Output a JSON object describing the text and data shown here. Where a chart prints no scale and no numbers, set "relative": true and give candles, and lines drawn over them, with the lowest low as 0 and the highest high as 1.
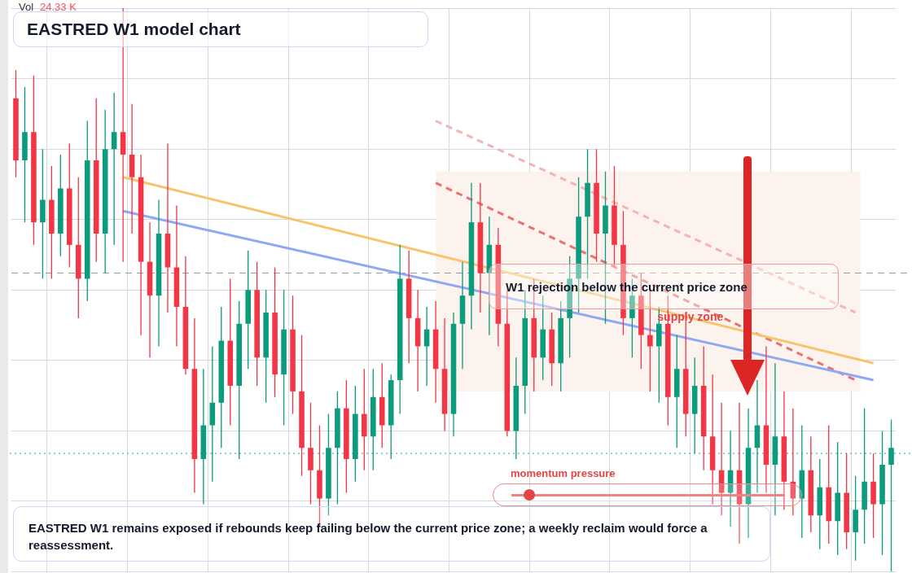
{
  "chart_data": {
    "type": "candlestick",
    "title": "EASTRED W1 model chart",
    "relative": true,
    "grid": true,
    "legend": false,
    "categories": [
      null,
      null,
      null,
      null,
      null,
      null,
      null,
      null,
      null,
      null,
      null,
      null,
      null,
      null,
      null,
      null,
      null,
      null,
      null,
      null,
      null,
      null,
      null,
      null,
      null,
      null,
      null,
      null,
      null,
      null,
      null,
      null,
      null,
      null,
      null,
      null,
      null,
      null,
      null,
      null,
      null,
      null,
      null,
      null,
      null,
      null,
      null,
      null,
      null,
      null,
      null,
      null,
      null,
      null,
      null,
      null,
      null,
      null,
      null,
      null,
      null,
      null,
      null,
      null,
      null,
      null,
      null,
      null,
      null,
      null,
      null,
      null,
      null,
      null,
      null,
      null,
      null,
      null,
      null,
      null,
      null,
      null,
      null,
      null,
      null,
      null,
      null,
      null,
      null,
      null,
      null,
      null,
      null,
      null,
      null,
      null,
      null,
      null,
      null
    ],
    "ohlc": [
      [
        0.84,
        0.89,
        0.7,
        0.73
      ],
      [
        0.73,
        0.86,
        0.62,
        0.78
      ],
      [
        0.78,
        0.88,
        0.58,
        0.62
      ],
      [
        0.62,
        0.75,
        0.52,
        0.66
      ],
      [
        0.66,
        0.72,
        0.52,
        0.6
      ],
      [
        0.6,
        0.74,
        0.56,
        0.68
      ],
      [
        0.68,
        0.76,
        0.54,
        0.58
      ],
      [
        0.58,
        0.7,
        0.45,
        0.52
      ],
      [
        0.52,
        0.8,
        0.48,
        0.73
      ],
      [
        0.73,
        0.84,
        0.55,
        0.6
      ],
      [
        0.6,
        0.82,
        0.53,
        0.75
      ],
      [
        0.75,
        0.85,
        0.58,
        0.78
      ],
      [
        0.78,
        1.0,
        0.55,
        0.74
      ],
      [
        0.74,
        0.83,
        0.6,
        0.7
      ],
      [
        0.7,
        0.74,
        0.42,
        0.55
      ],
      [
        0.55,
        0.62,
        0.38,
        0.49
      ],
      [
        0.49,
        0.66,
        0.4,
        0.6
      ],
      [
        0.6,
        0.76,
        0.46,
        0.54
      ],
      [
        0.54,
        0.65,
        0.4,
        0.47
      ],
      [
        0.47,
        0.56,
        0.35,
        0.36
      ],
      [
        0.36,
        0.45,
        0.14,
        0.2
      ],
      [
        0.2,
        0.36,
        0.12,
        0.26
      ],
      [
        0.26,
        0.4,
        0.16,
        0.3
      ],
      [
        0.3,
        0.47,
        0.22,
        0.41
      ],
      [
        0.41,
        0.52,
        0.26,
        0.33
      ],
      [
        0.33,
        0.48,
        0.2,
        0.44
      ],
      [
        0.44,
        0.57,
        0.36,
        0.5
      ],
      [
        0.5,
        0.55,
        0.33,
        0.38
      ],
      [
        0.38,
        0.5,
        0.3,
        0.46
      ],
      [
        0.46,
        0.54,
        0.31,
        0.35
      ],
      [
        0.35,
        0.5,
        0.26,
        0.43
      ],
      [
        0.43,
        0.49,
        0.28,
        0.32
      ],
      [
        0.32,
        0.42,
        0.17,
        0.22
      ],
      [
        0.22,
        0.3,
        0.12,
        0.18
      ],
      [
        0.18,
        0.26,
        0.08,
        0.13
      ],
      [
        0.13,
        0.28,
        0.1,
        0.22
      ],
      [
        0.22,
        0.32,
        0.12,
        0.29
      ],
      [
        0.29,
        0.34,
        0.14,
        0.2
      ],
      [
        0.2,
        0.33,
        0.16,
        0.28
      ],
      [
        0.28,
        0.36,
        0.18,
        0.24
      ],
      [
        0.24,
        0.36,
        0.18,
        0.31
      ],
      [
        0.31,
        0.37,
        0.22,
        0.26
      ],
      [
        0.26,
        0.35,
        0.2,
        0.34
      ],
      [
        0.34,
        0.58,
        0.28,
        0.52
      ],
      [
        0.52,
        0.57,
        0.37,
        0.45
      ],
      [
        0.45,
        0.5,
        0.32,
        0.4
      ],
      [
        0.4,
        0.47,
        0.33,
        0.43
      ],
      [
        0.43,
        0.48,
        0.3,
        0.36
      ],
      [
        0.36,
        0.45,
        0.25,
        0.28
      ],
      [
        0.28,
        0.46,
        0.24,
        0.44
      ],
      [
        0.44,
        0.55,
        0.36,
        0.49
      ],
      [
        0.49,
        0.69,
        0.43,
        0.62
      ],
      [
        0.62,
        0.69,
        0.46,
        0.53
      ],
      [
        0.53,
        0.63,
        0.42,
        0.58
      ],
      [
        0.58,
        0.61,
        0.4,
        0.44
      ],
      [
        0.44,
        0.5,
        0.24,
        0.25
      ],
      [
        0.25,
        0.38,
        0.2,
        0.33
      ],
      [
        0.33,
        0.5,
        0.28,
        0.45
      ],
      [
        0.45,
        0.52,
        0.32,
        0.38
      ],
      [
        0.38,
        0.49,
        0.34,
        0.43
      ],
      [
        0.43,
        0.46,
        0.33,
        0.37
      ],
      [
        0.37,
        0.48,
        0.32,
        0.45
      ],
      [
        0.45,
        0.56,
        0.38,
        0.52
      ],
      [
        0.52,
        0.7,
        0.46,
        0.63
      ],
      [
        0.63,
        0.75,
        0.52,
        0.69
      ],
      [
        0.69,
        0.75,
        0.55,
        0.6
      ],
      [
        0.6,
        0.71,
        0.44,
        0.65
      ],
      [
        0.65,
        0.72,
        0.54,
        0.58
      ],
      [
        0.58,
        0.64,
        0.42,
        0.45
      ],
      [
        0.45,
        0.52,
        0.38,
        0.49
      ],
      [
        0.49,
        0.53,
        0.36,
        0.42
      ],
      [
        0.42,
        0.5,
        0.32,
        0.4
      ],
      [
        0.4,
        0.47,
        0.3,
        0.44
      ],
      [
        0.44,
        0.49,
        0.26,
        0.31
      ],
      [
        0.31,
        0.42,
        0.22,
        0.36
      ],
      [
        0.36,
        0.46,
        0.24,
        0.28
      ],
      [
        0.28,
        0.38,
        0.21,
        0.33
      ],
      [
        0.33,
        0.4,
        0.18,
        0.24
      ],
      [
        0.24,
        0.35,
        0.12,
        0.18
      ],
      [
        0.18,
        0.3,
        0.1,
        0.14
      ],
      [
        0.14,
        0.25,
        0.08,
        0.18
      ],
      [
        0.18,
        0.3,
        0.05,
        0.12
      ],
      [
        0.12,
        0.29,
        0.06,
        0.22
      ],
      [
        0.22,
        0.34,
        0.14,
        0.26
      ],
      [
        0.26,
        0.4,
        0.14,
        0.19
      ],
      [
        0.19,
        0.37,
        0.1,
        0.24
      ],
      [
        0.24,
        0.32,
        0.11,
        0.16
      ],
      [
        0.16,
        0.29,
        0.1,
        0.13
      ],
      [
        0.13,
        0.26,
        0.06,
        0.18
      ],
      [
        0.18,
        0.24,
        0.07,
        0.1
      ],
      [
        0.1,
        0.2,
        0.04,
        0.15
      ],
      [
        0.15,
        0.26,
        0.05,
        0.09
      ],
      [
        0.09,
        0.23,
        0.03,
        0.14
      ],
      [
        0.14,
        0.21,
        0.04,
        0.07
      ],
      [
        0.07,
        0.17,
        0.02,
        0.11
      ],
      [
        0.11,
        0.29,
        0.05,
        0.16
      ],
      [
        0.16,
        0.21,
        0.06,
        0.12
      ],
      [
        0.12,
        0.25,
        0.03,
        0.19
      ],
      [
        0.19,
        0.27,
        0.0,
        0.22
      ]
    ],
    "series": [
      {
        "type": "line",
        "color": "#f7c46c",
        "line_style": "solid",
        "values": [
          null,
          null,
          null,
          null,
          null,
          null,
          null,
          null,
          null,
          null,
          null,
          null,
          0.7,
          null,
          null,
          null,
          null,
          null,
          null,
          null,
          null,
          null,
          null,
          null,
          null,
          null,
          null,
          null,
          null,
          null,
          null,
          null,
          null,
          null,
          null,
          null,
          null,
          null,
          null,
          null,
          null,
          null,
          null,
          null,
          null,
          null,
          null,
          null,
          null,
          null,
          null,
          null,
          null,
          null,
          null,
          null,
          null,
          null,
          null,
          null,
          null,
          null,
          null,
          null,
          null,
          null,
          null,
          null,
          null,
          null,
          null,
          null,
          null,
          null,
          null,
          null,
          null,
          null,
          null,
          null,
          null,
          null,
          null,
          null,
          null,
          null,
          null,
          null,
          null,
          null,
          null,
          null,
          null,
          null,
          null,
          null,
          0.37,
          null,
          null
        ]
      },
      {
        "type": "line",
        "color": "#8fa8f5",
        "line_style": "solid",
        "values": [
          null,
          null,
          null,
          null,
          null,
          null,
          null,
          null,
          null,
          null,
          null,
          null,
          0.64,
          null,
          null,
          null,
          null,
          null,
          null,
          null,
          null,
          null,
          null,
          null,
          null,
          null,
          null,
          null,
          null,
          null,
          null,
          null,
          null,
          null,
          null,
          null,
          null,
          null,
          null,
          null,
          null,
          null,
          null,
          null,
          null,
          null,
          null,
          null,
          null,
          null,
          null,
          null,
          null,
          null,
          null,
          null,
          null,
          null,
          null,
          null,
          null,
          null,
          null,
          null,
          null,
          null,
          null,
          null,
          null,
          null,
          null,
          null,
          null,
          null,
          null,
          null,
          null,
          null,
          null,
          null,
          null,
          null,
          null,
          null,
          null,
          null,
          null,
          null,
          null,
          null,
          null,
          null,
          null,
          null,
          null,
          null,
          0.34,
          null,
          null
        ]
      },
      {
        "type": "line",
        "color": "#e87272",
        "line_style": "dashed",
        "values": [
          null,
          null,
          null,
          null,
          null,
          null,
          null,
          null,
          null,
          null,
          null,
          null,
          null,
          null,
          null,
          null,
          null,
          null,
          null,
          null,
          null,
          null,
          null,
          null,
          null,
          null,
          null,
          null,
          null,
          null,
          null,
          null,
          null,
          null,
          null,
          null,
          null,
          null,
          null,
          null,
          null,
          null,
          null,
          null,
          null,
          null,
          null,
          0.69,
          null,
          null,
          null,
          null,
          null,
          null,
          null,
          null,
          null,
          null,
          null,
          null,
          null,
          null,
          null,
          null,
          null,
          null,
          null,
          null,
          null,
          null,
          null,
          null,
          null,
          null,
          null,
          null,
          null,
          null,
          null,
          null,
          null,
          null,
          null,
          null,
          null,
          null,
          null,
          null,
          null,
          null,
          null,
          null,
          null,
          null,
          0.34,
          null,
          null,
          null,
          null
        ]
      },
      {
        "type": "line",
        "color": "#f4b4b4",
        "line_style": "dashed",
        "values": [
          null,
          null,
          null,
          null,
          null,
          null,
          null,
          null,
          null,
          null,
          null,
          null,
          null,
          null,
          null,
          null,
          null,
          null,
          null,
          null,
          null,
          null,
          null,
          null,
          null,
          null,
          null,
          null,
          null,
          null,
          null,
          null,
          null,
          null,
          null,
          null,
          null,
          null,
          null,
          null,
          null,
          null,
          null,
          null,
          null,
          null,
          null,
          0.8,
          null,
          null,
          null,
          null,
          null,
          null,
          null,
          null,
          null,
          null,
          null,
          null,
          null,
          null,
          null,
          null,
          null,
          null,
          null,
          null,
          null,
          null,
          null,
          null,
          null,
          null,
          null,
          null,
          null,
          null,
          null,
          null,
          null,
          null,
          null,
          null,
          null,
          null,
          null,
          null,
          null,
          null,
          null,
          null,
          null,
          null,
          0.46,
          null,
          null,
          null,
          null
        ]
      }
    ],
    "ref_lines": [
      {
        "axis": "y",
        "value": 0.53,
        "color": "#999999",
        "line_style": "dashed"
      },
      {
        "axis": "y",
        "value": 0.21,
        "color": "#1aa39a",
        "line_style": "dotted"
      }
    ],
    "bands": [
      {
        "axis": "y",
        "from": 0.32,
        "to": 0.71,
        "label": "supply zone",
        "color": "#fdf3ee"
      }
    ],
    "annotations": [
      "Vol",
      "24.33 K",
      "W1 rejection below the current price zone",
      "momentum pressure",
      "EASTRED W1 remains exposed if rebounds keep failing below the current price zone; a weekly reclaim would force a reassessment."
    ]
  }
}
